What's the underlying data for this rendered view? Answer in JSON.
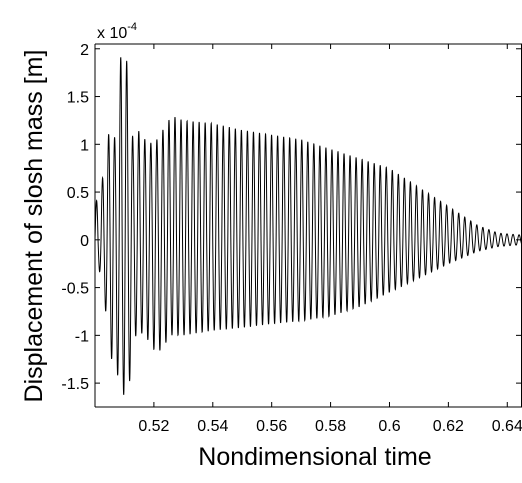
{
  "chart_data": {
    "type": "line",
    "xlabel": "Nondimensional time",
    "ylabel": "Displacement of slosh mass [m]",
    "y_multiplier": {
      "prefix": "x 10",
      "exponent": "-4"
    },
    "xlim": [
      0.5,
      0.645
    ],
    "ylim": [
      -1.75,
      2.05
    ],
    "x_ticks": [
      {
        "value": 0.52,
        "label": "0.52"
      },
      {
        "value": 0.54,
        "label": "0.54"
      },
      {
        "value": 0.56,
        "label": "0.56"
      },
      {
        "value": 0.58,
        "label": "0.58"
      },
      {
        "value": 0.6,
        "label": "0.6"
      },
      {
        "value": 0.62,
        "label": "0.62"
      },
      {
        "value": 0.64,
        "label": "0.64"
      }
    ],
    "y_ticks": [
      {
        "value": 2,
        "label": "2"
      },
      {
        "value": 1.5,
        "label": "1.5"
      },
      {
        "value": 1,
        "label": "1"
      },
      {
        "value": 0.5,
        "label": "0.5"
      },
      {
        "value": 0,
        "label": "0"
      },
      {
        "value": -0.5,
        "label": "-0.5"
      },
      {
        "value": -1,
        "label": "-1"
      },
      {
        "value": -1.5,
        "label": "-1.5"
      }
    ],
    "grid": false,
    "series": [
      {
        "color": "#000000",
        "oscillation_period": 0.00205,
        "amplitude_envelope": [
          {
            "x": 0.5,
            "pos": 0.35,
            "neg": -0.1
          },
          {
            "x": 0.503,
            "pos": 0.7,
            "neg": -0.55
          },
          {
            "x": 0.505,
            "pos": 1.2,
            "neg": -1.2
          },
          {
            "x": 0.507,
            "pos": 1.05,
            "neg": -1.35
          },
          {
            "x": 0.509,
            "pos": 2.05,
            "neg": -1.55
          },
          {
            "x": 0.511,
            "pos": 1.85,
            "neg": -1.75
          },
          {
            "x": 0.513,
            "pos": 1.0,
            "neg": -1.05
          },
          {
            "x": 0.515,
            "pos": 1.15,
            "neg": -0.95
          },
          {
            "x": 0.518,
            "pos": 1.0,
            "neg": -1.05
          },
          {
            "x": 0.521,
            "pos": 1.05,
            "neg": -1.2
          },
          {
            "x": 0.526,
            "pos": 1.3,
            "neg": -1.0
          },
          {
            "x": 0.53,
            "pos": 1.25,
            "neg": -1.0
          },
          {
            "x": 0.54,
            "pos": 1.22,
            "neg": -0.95
          },
          {
            "x": 0.55,
            "pos": 1.15,
            "neg": -0.92
          },
          {
            "x": 0.56,
            "pos": 1.1,
            "neg": -0.88
          },
          {
            "x": 0.57,
            "pos": 1.05,
            "neg": -0.85
          },
          {
            "x": 0.58,
            "pos": 0.95,
            "neg": -0.8
          },
          {
            "x": 0.59,
            "pos": 0.85,
            "neg": -0.7
          },
          {
            "x": 0.6,
            "pos": 0.75,
            "neg": -0.55
          },
          {
            "x": 0.61,
            "pos": 0.55,
            "neg": -0.4
          },
          {
            "x": 0.62,
            "pos": 0.35,
            "neg": -0.25
          },
          {
            "x": 0.63,
            "pos": 0.15,
            "neg": -0.12
          },
          {
            "x": 0.637,
            "pos": 0.07,
            "neg": -0.07
          },
          {
            "x": 0.645,
            "pos": 0.05,
            "neg": -0.05
          }
        ]
      }
    ]
  }
}
